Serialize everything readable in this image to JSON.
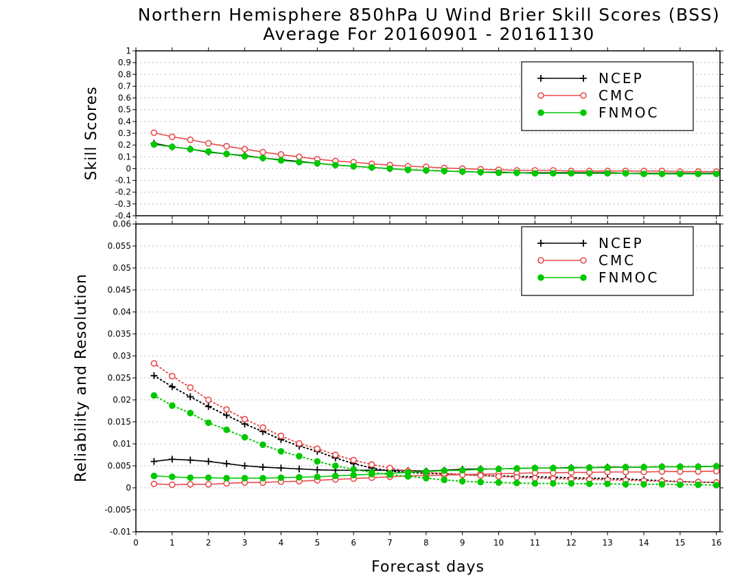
{
  "title": {
    "line1": "Northern Hemisphere 850hPa U Wind Brier Skill Scores (BSS)",
    "line2": "Average For 20160901 - 20161130"
  },
  "colors": {
    "NCEP": "#000000",
    "CMC": "#e84a4a",
    "FNMOC": "#00c800"
  },
  "chart_data": [
    {
      "type": "line",
      "ylabel": "Skill Scores",
      "xlabel": "",
      "xlim": [
        0,
        16.1
      ],
      "ylim": [
        -0.4,
        1
      ],
      "xticks": [
        "0",
        "1",
        "2",
        "3",
        "4",
        "5",
        "6",
        "7",
        "8",
        "9",
        "10",
        "11",
        "12",
        "13",
        "14",
        "15",
        "16"
      ],
      "yticks": [
        "1",
        "0.9",
        "0.8",
        "0.7",
        "0.6",
        "0.5",
        "0.4",
        "0.3",
        "0.2",
        "0.1",
        "0",
        "-0.1",
        "-0.2",
        "-0.3",
        "-0.4"
      ],
      "grid": true,
      "legend": {
        "position": "top-right",
        "entries": [
          "NCEP",
          "CMC",
          "FNMOC"
        ]
      },
      "x": [
        0.5,
        1,
        1.5,
        2,
        2.5,
        3,
        3.5,
        4,
        4.5,
        5,
        5.5,
        6,
        6.5,
        7,
        7.5,
        8,
        8.5,
        9,
        9.5,
        10,
        10.5,
        11,
        11.5,
        12,
        12.5,
        13,
        13.5,
        14,
        14.5,
        15,
        15.5,
        16
      ],
      "series": [
        {
          "name": "NCEP",
          "marker": "plus",
          "style": "solid",
          "values": [
            0.215,
            0.185,
            0.165,
            0.14,
            0.125,
            0.11,
            0.09,
            0.075,
            0.06,
            0.045,
            0.03,
            0.02,
            0.01,
            0.0,
            -0.01,
            -0.015,
            -0.02,
            -0.025,
            -0.03,
            -0.03,
            -0.035,
            -0.035,
            -0.035,
            -0.035,
            -0.035,
            -0.035,
            -0.04,
            -0.04,
            -0.04,
            -0.04,
            -0.04,
            -0.04
          ]
        },
        {
          "name": "CMC",
          "marker": "open-circle",
          "style": "solid",
          "values": [
            0.305,
            0.27,
            0.245,
            0.215,
            0.19,
            0.165,
            0.14,
            0.12,
            0.1,
            0.08,
            0.065,
            0.055,
            0.04,
            0.03,
            0.02,
            0.015,
            0.005,
            0.0,
            -0.005,
            -0.01,
            -0.015,
            -0.015,
            -0.015,
            -0.02,
            -0.02,
            -0.02,
            -0.02,
            -0.02,
            -0.02,
            -0.025,
            -0.025,
            -0.025
          ]
        },
        {
          "name": "FNMOC",
          "marker": "filled-circle",
          "style": "solid",
          "values": [
            0.205,
            0.185,
            0.165,
            0.145,
            0.125,
            0.105,
            0.09,
            0.07,
            0.055,
            0.045,
            0.03,
            0.02,
            0.01,
            0.0,
            -0.01,
            -0.015,
            -0.02,
            -0.025,
            -0.03,
            -0.035,
            -0.035,
            -0.04,
            -0.04,
            -0.04,
            -0.04,
            -0.04,
            -0.04,
            -0.045,
            -0.045,
            -0.045,
            -0.045,
            -0.045
          ]
        }
      ]
    },
    {
      "type": "line",
      "ylabel": "Reliability and Resolution",
      "xlabel": "Forecast days",
      "xlim": [
        0,
        16.1
      ],
      "ylim": [
        -0.01,
        0.06
      ],
      "xticks": [
        "0",
        "1",
        "2",
        "3",
        "4",
        "5",
        "6",
        "7",
        "8",
        "9",
        "10",
        "11",
        "12",
        "13",
        "14",
        "15",
        "16"
      ],
      "yticks": [
        "0.06",
        "0.055",
        "0.05",
        "0.045",
        "0.04",
        "0.035",
        "0.03",
        "0.025",
        "0.02",
        "0.015",
        "0.01",
        "0.005",
        "0",
        "-0.005",
        "-0.01"
      ],
      "grid": true,
      "legend": {
        "position": "top-right",
        "entries": [
          "NCEP",
          "CMC",
          "FNMOC"
        ]
      },
      "x": [
        0.5,
        1,
        1.5,
        2,
        2.5,
        3,
        3.5,
        4,
        4.5,
        5,
        5.5,
        6,
        6.5,
        7,
        7.5,
        8,
        8.5,
        9,
        9.5,
        10,
        10.5,
        11,
        11.5,
        12,
        12.5,
        13,
        13.5,
        14,
        14.5,
        15,
        15.5,
        16
      ],
      "series": [
        {
          "name": "NCEP",
          "kind": "reliability",
          "marker": "plus",
          "style": "solid",
          "values": [
            0.006,
            0.0065,
            0.0063,
            0.006,
            0.0055,
            0.005,
            0.0047,
            0.0045,
            0.0043,
            0.0041,
            0.004,
            0.004,
            0.004,
            0.004,
            0.0039,
            0.0038,
            0.004,
            0.0042,
            0.0043,
            0.0043,
            0.0044,
            0.0045,
            0.0045,
            0.0046,
            0.0046,
            0.0047,
            0.0047,
            0.0047,
            0.0048,
            0.0048,
            0.0048,
            0.0049
          ]
        },
        {
          "name": "NCEP",
          "kind": "resolution",
          "marker": "plus",
          "style": "dotted",
          "values": [
            0.0255,
            0.023,
            0.0207,
            0.0185,
            0.0165,
            0.0145,
            0.0128,
            0.011,
            0.0095,
            0.0083,
            0.0068,
            0.0055,
            0.0045,
            0.0038,
            0.0035,
            0.0033,
            0.0032,
            0.003,
            0.0028,
            0.0027,
            0.0026,
            0.0025,
            0.0024,
            0.0023,
            0.0022,
            0.0021,
            0.002,
            0.0018,
            0.0016,
            0.0014,
            0.0013,
            0.0012
          ]
        },
        {
          "name": "CMC",
          "kind": "reliability",
          "marker": "open-circle",
          "style": "solid",
          "values": [
            0.0009,
            0.0007,
            0.0008,
            0.0008,
            0.001,
            0.0012,
            0.0012,
            0.0014,
            0.0015,
            0.0017,
            0.0019,
            0.0021,
            0.0023,
            0.0025,
            0.0027,
            0.0028,
            0.0029,
            0.003,
            0.0031,
            0.0032,
            0.0033,
            0.0034,
            0.0034,
            0.0035,
            0.0035,
            0.0036,
            0.0036,
            0.0036,
            0.0037,
            0.0037,
            0.0037,
            0.0038
          ]
        },
        {
          "name": "CMC",
          "kind": "resolution",
          "marker": "open-circle",
          "style": "dotted",
          "values": [
            0.0283,
            0.0254,
            0.0228,
            0.02,
            0.0178,
            0.0156,
            0.0137,
            0.0118,
            0.0101,
            0.0089,
            0.0075,
            0.0063,
            0.0053,
            0.0045,
            0.0038,
            0.0035,
            0.0033,
            0.003,
            0.0028,
            0.0026,
            0.0024,
            0.0022,
            0.0021,
            0.002,
            0.0019,
            0.0018,
            0.0017,
            0.0016,
            0.0015,
            0.0014,
            0.0013,
            0.0012
          ]
        },
        {
          "name": "FNMOC",
          "kind": "reliability",
          "marker": "filled-circle",
          "style": "solid",
          "values": [
            0.0027,
            0.0025,
            0.0023,
            0.0023,
            0.0022,
            0.0022,
            0.0022,
            0.0023,
            0.0024,
            0.0025,
            0.0027,
            0.0029,
            0.0031,
            0.0033,
            0.0035,
            0.0037,
            0.0039,
            0.004,
            0.0042,
            0.0043,
            0.0044,
            0.0045,
            0.0045,
            0.0045,
            0.0046,
            0.0046,
            0.0047,
            0.0047,
            0.0048,
            0.0048,
            0.0048,
            0.0049
          ]
        },
        {
          "name": "FNMOC",
          "kind": "resolution",
          "marker": "filled-circle",
          "style": "dotted",
          "values": [
            0.021,
            0.0187,
            0.017,
            0.0148,
            0.0132,
            0.0115,
            0.0098,
            0.0083,
            0.0072,
            0.006,
            0.005,
            0.0042,
            0.0035,
            0.003,
            0.0026,
            0.0022,
            0.0018,
            0.0015,
            0.0013,
            0.0012,
            0.0011,
            0.001,
            0.001,
            0.001,
            0.0009,
            0.0009,
            0.0008,
            0.0008,
            0.0008,
            0.0007,
            0.0007,
            0.0006
          ]
        }
      ]
    }
  ]
}
